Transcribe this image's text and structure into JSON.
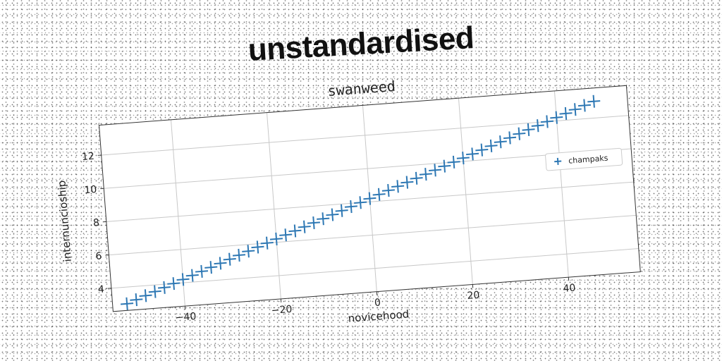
{
  "headline": "unstandardised",
  "chart_data": {
    "type": "scatter",
    "title": "swanweed",
    "xlabel": "novicehood",
    "ylabel": "internuncioship",
    "xlim": [
      -55,
      55
    ],
    "ylim": [
      2.6,
      13.8
    ],
    "xticks": [
      -40,
      -20,
      0,
      20,
      40
    ],
    "yticks": [
      4,
      6,
      8,
      10,
      12
    ],
    "grid": true,
    "legend_position": "right",
    "marker": "+",
    "series": [
      {
        "name": "champaks",
        "color": "#2e78b4",
        "x": [
          -52,
          -50,
          -48,
          -46,
          -44,
          -42,
          -40,
          -38,
          -36,
          -34,
          -32,
          -30,
          -28,
          -26,
          -24,
          -22,
          -20,
          -18,
          -16,
          -14,
          -12,
          -10,
          -8,
          -6,
          -4,
          -2,
          0,
          2,
          4,
          6,
          8,
          10,
          12,
          14,
          16,
          18,
          20,
          22,
          24,
          26,
          28,
          30,
          32,
          34,
          36,
          38,
          40,
          42,
          44,
          46,
          48
        ],
        "y": [
          3.0,
          3.2,
          3.4,
          3.6,
          3.8,
          4.0,
          4.2,
          4.4,
          4.6,
          4.8,
          5.0,
          5.2,
          5.4,
          5.6,
          5.8,
          6.0,
          6.2,
          6.4,
          6.6,
          6.8,
          7.0,
          7.2,
          7.4,
          7.6,
          7.8,
          8.0,
          8.2,
          8.4,
          8.6,
          8.8,
          9.0,
          9.2,
          9.4,
          9.6,
          9.8,
          10.0,
          10.2,
          10.4,
          10.6,
          10.8,
          11.0,
          11.2,
          11.4,
          11.6,
          11.8,
          12.0,
          12.2,
          12.4,
          12.6,
          12.8,
          13.0
        ]
      }
    ]
  }
}
